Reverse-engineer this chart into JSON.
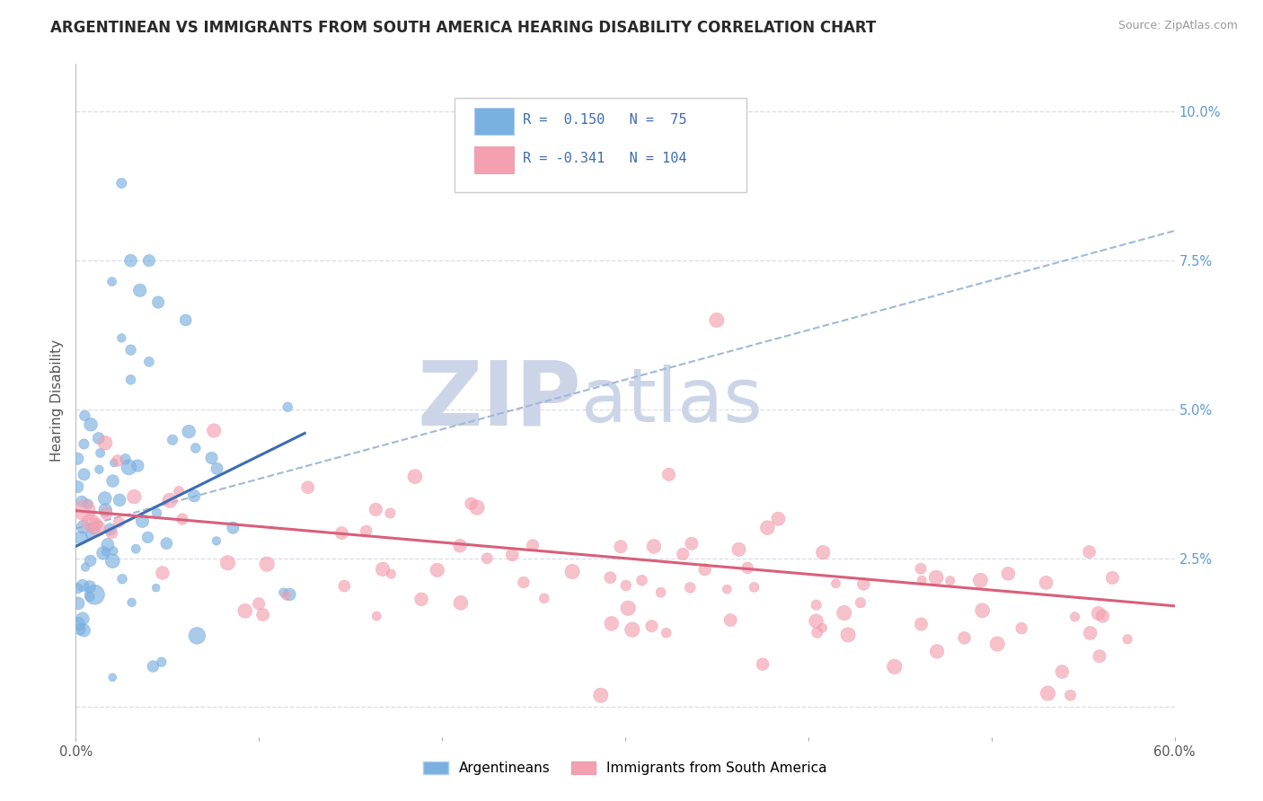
{
  "title": "ARGENTINEAN VS IMMIGRANTS FROM SOUTH AMERICA HEARING DISABILITY CORRELATION CHART",
  "source_text": "Source: ZipAtlas.com",
  "ylabel": "Hearing Disability",
  "xlim": [
    0.0,
    0.6
  ],
  "ylim": [
    -0.005,
    0.108
  ],
  "xticks": [
    0.0,
    0.1,
    0.2,
    0.3,
    0.4,
    0.5,
    0.6
  ],
  "xticklabels": [
    "0.0%",
    "",
    "",
    "",
    "",
    "",
    "60.0%"
  ],
  "yticks": [
    0.0,
    0.025,
    0.05,
    0.075,
    0.1
  ],
  "yticklabels_right": [
    "",
    "2.5%",
    "5.0%",
    "7.5%",
    "10.0%"
  ],
  "blue_color": "#7ab0e0",
  "pink_color": "#f4a0b0",
  "blue_line_color": "#3d6cb5",
  "pink_line_color": "#d95f7a",
  "dashed_line_color": "#a0b8d8",
  "background_color": "#ffffff",
  "grid_color": "#d8dde8",
  "watermark_color": "#ccd5e8",
  "legend_label1": "Argentineans",
  "legend_label2": "Immigrants from South America",
  "title_fontsize": 12,
  "axis_label_fontsize": 11,
  "tick_fontsize": 10.5,
  "blue_R": 0.15,
  "blue_N": 75,
  "pink_R": -0.341,
  "pink_N": 104,
  "blue_line_x": [
    0.0,
    0.125
  ],
  "blue_line_y": [
    0.027,
    0.046
  ],
  "pink_line_x": [
    0.0,
    0.6
  ],
  "pink_line_y": [
    0.033,
    0.017
  ],
  "dash_line_x": [
    0.0,
    0.6
  ],
  "dash_line_y": [
    0.03,
    0.08
  ]
}
